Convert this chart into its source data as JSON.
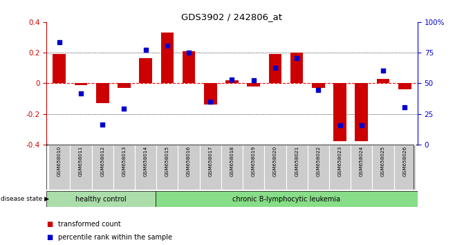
{
  "title": "GDS3902 / 242806_at",
  "samples": [
    "GSM658010",
    "GSM658011",
    "GSM658012",
    "GSM658013",
    "GSM658014",
    "GSM658015",
    "GSM658016",
    "GSM658017",
    "GSM658018",
    "GSM658019",
    "GSM658020",
    "GSM658021",
    "GSM658022",
    "GSM658023",
    "GSM658024",
    "GSM658025",
    "GSM658026"
  ],
  "red_bars": [
    0.19,
    -0.01,
    -0.13,
    -0.03,
    0.165,
    0.33,
    0.21,
    -0.14,
    0.02,
    -0.02,
    0.19,
    0.2,
    -0.03,
    -0.38,
    -0.38,
    0.03,
    -0.04
  ],
  "blue_dots": [
    0.27,
    -0.065,
    -0.27,
    -0.165,
    0.22,
    0.245,
    0.2,
    -0.12,
    0.025,
    0.02,
    0.1,
    0.165,
    -0.045,
    -0.275,
    -0.275,
    0.085,
    -0.155
  ],
  "ylim": [
    -0.4,
    0.4
  ],
  "y2lim": [
    0,
    100
  ],
  "yticks": [
    -0.4,
    -0.2,
    0.0,
    0.2,
    0.4
  ],
  "y2ticks": [
    0,
    25,
    50,
    75,
    100
  ],
  "healthy_count": 5,
  "healthy_label": "healthy control",
  "disease_label": "chronic B-lymphocytic leukemia",
  "disease_state_label": "disease state",
  "red_color": "#cc0000",
  "blue_color": "#0000cc",
  "bar_width": 0.6,
  "hline_color": "#ff0000",
  "dotted_color": "#000000",
  "bg_color": "#ffffff",
  "plot_bg": "#ffffff",
  "legend_red": "transformed count",
  "legend_blue": "percentile rank within the sample",
  "healthy_bg": "#aaddaa",
  "disease_bg": "#88dd88"
}
